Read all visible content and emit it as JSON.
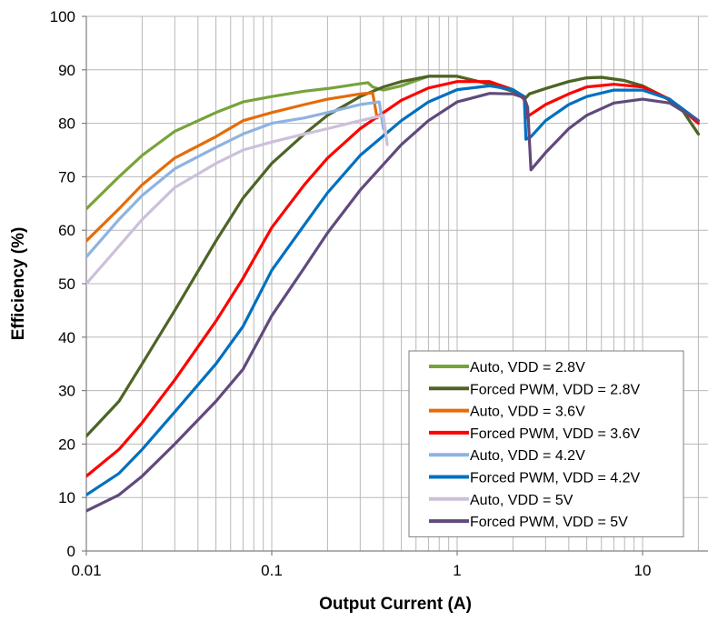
{
  "chart_data": {
    "type": "line",
    "title": "",
    "xlabel": "Output Current (A)",
    "ylabel": "Efficiency (%)",
    "xscale": "log",
    "xlim": [
      0.01,
      20
    ],
    "ylim": [
      0,
      100
    ],
    "grid": true,
    "legend_position": "bottom-right",
    "x_ticks": [
      "0.01",
      "0.1",
      "1",
      "10"
    ],
    "y_ticks": [
      "0",
      "10",
      "20",
      "30",
      "40",
      "50",
      "60",
      "70",
      "80",
      "90",
      "100"
    ],
    "series": [
      {
        "name": "Auto, VDD = 2.8V",
        "color": "#77a33b",
        "points": [
          [
            0.01,
            64
          ],
          [
            0.015,
            70
          ],
          [
            0.02,
            74
          ],
          [
            0.03,
            78.5
          ],
          [
            0.05,
            82
          ],
          [
            0.07,
            84
          ],
          [
            0.1,
            85
          ],
          [
            0.15,
            86
          ],
          [
            0.2,
            86.5
          ],
          [
            0.3,
            87.4
          ],
          [
            0.33,
            87.6
          ],
          [
            0.35,
            86.8
          ],
          [
            0.4,
            86.2
          ],
          [
            0.5,
            87
          ],
          [
            0.7,
            88.8
          ],
          [
            1,
            88.8
          ],
          [
            1.5,
            87.3
          ],
          [
            2,
            86
          ],
          [
            2.3,
            85
          ],
          [
            2.35,
            84.8
          ],
          [
            2.45,
            85.5
          ],
          [
            3,
            86.5
          ],
          [
            4,
            87.8
          ],
          [
            5,
            88.5
          ],
          [
            6,
            88.6
          ],
          [
            8,
            88
          ],
          [
            10,
            87
          ],
          [
            13,
            85
          ],
          [
            16,
            83
          ],
          [
            20,
            78
          ]
        ]
      },
      {
        "name": "Forced PWM, VDD = 2.8V",
        "color": "#4d6426",
        "points": [
          [
            0.01,
            21.5
          ],
          [
            0.015,
            28
          ],
          [
            0.02,
            35
          ],
          [
            0.03,
            45
          ],
          [
            0.05,
            58
          ],
          [
            0.07,
            66
          ],
          [
            0.1,
            72.5
          ],
          [
            0.15,
            78
          ],
          [
            0.2,
            81.5
          ],
          [
            0.3,
            85
          ],
          [
            0.4,
            86.8
          ],
          [
            0.5,
            87.8
          ],
          [
            0.7,
            88.8
          ],
          [
            1,
            88.8
          ],
          [
            1.5,
            87.3
          ],
          [
            2,
            86
          ],
          [
            2.3,
            85
          ],
          [
            2.35,
            84.8
          ],
          [
            2.45,
            85.5
          ],
          [
            3,
            86.5
          ],
          [
            4,
            87.8
          ],
          [
            5,
            88.5
          ],
          [
            6,
            88.6
          ],
          [
            8,
            88
          ],
          [
            10,
            87
          ],
          [
            13,
            85
          ],
          [
            16,
            83
          ],
          [
            20,
            78
          ]
        ]
      },
      {
        "name": "Auto, VDD = 3.6V",
        "color": "#e46c0a",
        "points": [
          [
            0.01,
            58
          ],
          [
            0.015,
            64
          ],
          [
            0.02,
            68.5
          ],
          [
            0.03,
            73.5
          ],
          [
            0.05,
            77.5
          ],
          [
            0.07,
            80.5
          ],
          [
            0.1,
            82
          ],
          [
            0.15,
            83.5
          ],
          [
            0.2,
            84.5
          ],
          [
            0.3,
            85.5
          ],
          [
            0.35,
            85.7
          ],
          [
            0.37,
            81
          ]
        ]
      },
      {
        "name": "Forced PWM, VDD = 3.6V",
        "color": "#ff0000",
        "points": [
          [
            0.01,
            14
          ],
          [
            0.015,
            19
          ],
          [
            0.02,
            24
          ],
          [
            0.03,
            32
          ],
          [
            0.05,
            43
          ],
          [
            0.07,
            51
          ],
          [
            0.1,
            60.5
          ],
          [
            0.15,
            68.5
          ],
          [
            0.2,
            73.5
          ],
          [
            0.3,
            79
          ],
          [
            0.5,
            84.3
          ],
          [
            0.7,
            86.6
          ],
          [
            1,
            87.8
          ],
          [
            1.5,
            87.8
          ],
          [
            2,
            86.3
          ],
          [
            2.3,
            84.5
          ],
          [
            2.35,
            81
          ],
          [
            2.45,
            81.5
          ],
          [
            3,
            83.5
          ],
          [
            4,
            85.5
          ],
          [
            5,
            86.8
          ],
          [
            7,
            87.3
          ],
          [
            10,
            86.8
          ],
          [
            14,
            84.5
          ],
          [
            20,
            80
          ]
        ]
      },
      {
        "name": "Auto, VDD = 4.2V",
        "color": "#8db3e2",
        "points": [
          [
            0.01,
            55
          ],
          [
            0.015,
            62
          ],
          [
            0.02,
            66.5
          ],
          [
            0.03,
            71.5
          ],
          [
            0.05,
            75.5
          ],
          [
            0.07,
            78
          ],
          [
            0.1,
            80
          ],
          [
            0.15,
            81
          ],
          [
            0.2,
            82
          ],
          [
            0.3,
            83.5
          ],
          [
            0.38,
            84
          ],
          [
            0.4,
            79
          ]
        ]
      },
      {
        "name": "Forced PWM, VDD = 4.2V",
        "color": "#0070c0",
        "points": [
          [
            0.01,
            10.5
          ],
          [
            0.015,
            14.5
          ],
          [
            0.02,
            19
          ],
          [
            0.03,
            26
          ],
          [
            0.05,
            35
          ],
          [
            0.07,
            42
          ],
          [
            0.1,
            52.5
          ],
          [
            0.15,
            61
          ],
          [
            0.2,
            67
          ],
          [
            0.3,
            74
          ],
          [
            0.5,
            80.5
          ],
          [
            0.7,
            84
          ],
          [
            1,
            86.3
          ],
          [
            1.5,
            87
          ],
          [
            2,
            86.3
          ],
          [
            2.3,
            85
          ],
          [
            2.35,
            77
          ],
          [
            2.5,
            77.5
          ],
          [
            3,
            80.5
          ],
          [
            4,
            83.5
          ],
          [
            5,
            85
          ],
          [
            7,
            86.2
          ],
          [
            10,
            86.2
          ],
          [
            14,
            84.5
          ],
          [
            20,
            80.5
          ]
        ]
      },
      {
        "name": "Auto, VDD = 5V",
        "color": "#ccc0da",
        "points": [
          [
            0.01,
            50
          ],
          [
            0.015,
            57
          ],
          [
            0.02,
            62
          ],
          [
            0.03,
            68
          ],
          [
            0.05,
            72.5
          ],
          [
            0.07,
            75
          ],
          [
            0.1,
            76.5
          ],
          [
            0.15,
            78
          ],
          [
            0.2,
            79
          ],
          [
            0.3,
            80.5
          ],
          [
            0.4,
            81.5
          ],
          [
            0.42,
            76
          ]
        ]
      },
      {
        "name": "Forced PWM, VDD = 5V",
        "color": "#604a7b",
        "points": [
          [
            0.01,
            7.5
          ],
          [
            0.015,
            10.5
          ],
          [
            0.02,
            14
          ],
          [
            0.03,
            20
          ],
          [
            0.05,
            28
          ],
          [
            0.07,
            34
          ],
          [
            0.1,
            44
          ],
          [
            0.15,
            53
          ],
          [
            0.2,
            59.5
          ],
          [
            0.3,
            67.5
          ],
          [
            0.5,
            76
          ],
          [
            0.7,
            80.5
          ],
          [
            1,
            84
          ],
          [
            1.5,
            85.6
          ],
          [
            2,
            85.5
          ],
          [
            2.3,
            84.8
          ],
          [
            2.4,
            83
          ],
          [
            2.5,
            71.3
          ],
          [
            3,
            74.5
          ],
          [
            4,
            79
          ],
          [
            5,
            81.5
          ],
          [
            7,
            83.8
          ],
          [
            10,
            84.5
          ],
          [
            14,
            83.8
          ],
          [
            20,
            80.5
          ]
        ]
      }
    ]
  }
}
